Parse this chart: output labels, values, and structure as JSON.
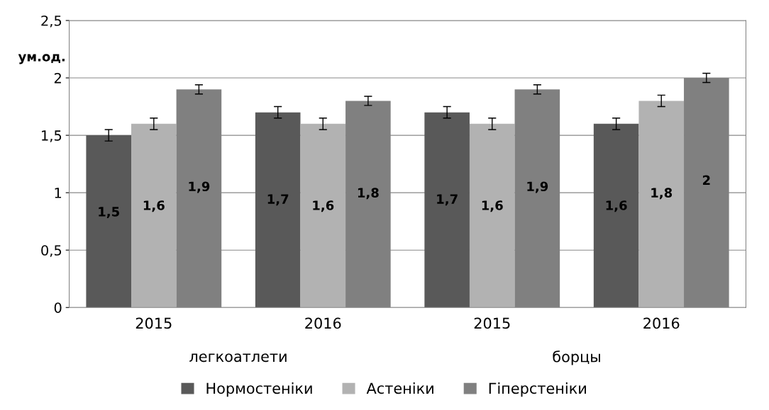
{
  "chart_data": {
    "type": "bar",
    "ylabel": "ум.од.",
    "categories": [
      "2015",
      "2016",
      "2015",
      "2016"
    ],
    "series": [
      {
        "name": "Нормостеніки",
        "color": "#595959",
        "values": [
          1.5,
          1.7,
          1.7,
          1.6
        ],
        "errors": [
          0.05,
          0.05,
          0.05,
          0.05
        ],
        "value_labels": [
          "1,5",
          "1,7",
          "1,7",
          "1,6"
        ]
      },
      {
        "name": "Астеніки",
        "color": "#b2b2b2",
        "values": [
          1.6,
          1.6,
          1.6,
          1.8
        ],
        "errors": [
          0.05,
          0.05,
          0.05,
          0.05
        ],
        "value_labels": [
          "1,6",
          "1,6",
          "1,6",
          "1,8"
        ]
      },
      {
        "name": "Гіперстеніки",
        "color": "#808080",
        "values": [
          1.9,
          1.8,
          1.9,
          2.0
        ],
        "errors": [
          0.04,
          0.04,
          0.04,
          0.04
        ],
        "value_labels": [
          "1,9",
          "1,8",
          "1,9",
          "2"
        ]
      }
    ],
    "ylim": [
      0,
      2.5
    ],
    "yticks": [
      0,
      {
        "value": 0.5,
        "label": "0,5"
      },
      1,
      {
        "value": 1.5,
        "label": "1,5"
      },
      2,
      {
        "value": 2.5,
        "label": "2,5"
      }
    ],
    "grid": "y",
    "legend": "bottom",
    "annotations": [
      "легкоатлети",
      "борцы"
    ]
  }
}
